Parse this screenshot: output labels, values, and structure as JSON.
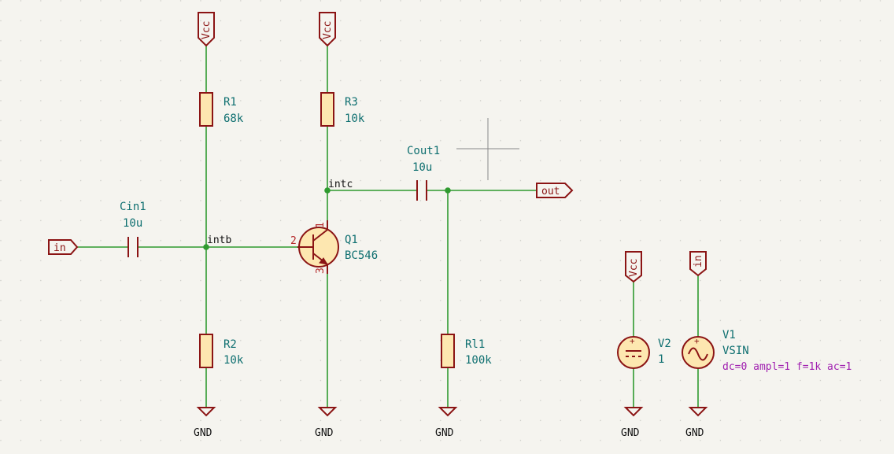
{
  "components": {
    "R1": {
      "ref": "R1",
      "value": "68k"
    },
    "R2": {
      "ref": "R2",
      "value": "10k"
    },
    "R3": {
      "ref": "R3",
      "value": "10k"
    },
    "Rl1": {
      "ref": "Rl1",
      "value": "100k"
    },
    "Cin1": {
      "ref": "Cin1",
      "value": "10u"
    },
    "Cout1": {
      "ref": "Cout1",
      "value": "10u"
    },
    "Q1": {
      "ref": "Q1",
      "value": "BC546",
      "pin_c": "1",
      "pin_b": "2",
      "pin_e": "3"
    },
    "V1": {
      "ref": "V1",
      "value": "VSIN",
      "params": "dc=0 ampl=1 f=1k ac=1"
    },
    "V2": {
      "ref": "V2",
      "value": "1"
    }
  },
  "nets": {
    "intb": "intb",
    "intc": "intc"
  },
  "power": {
    "vcc": "Vcc",
    "gnd": "GND"
  },
  "labels": {
    "in": "in",
    "out": "out"
  },
  "colors": {
    "wire": "#2f9a2f",
    "symbol": "#8b1414",
    "body_fill": "#fde7b0",
    "ref_text": "#0e6f70",
    "spice_text": "#a020b0",
    "background": "#f5f4ef"
  }
}
